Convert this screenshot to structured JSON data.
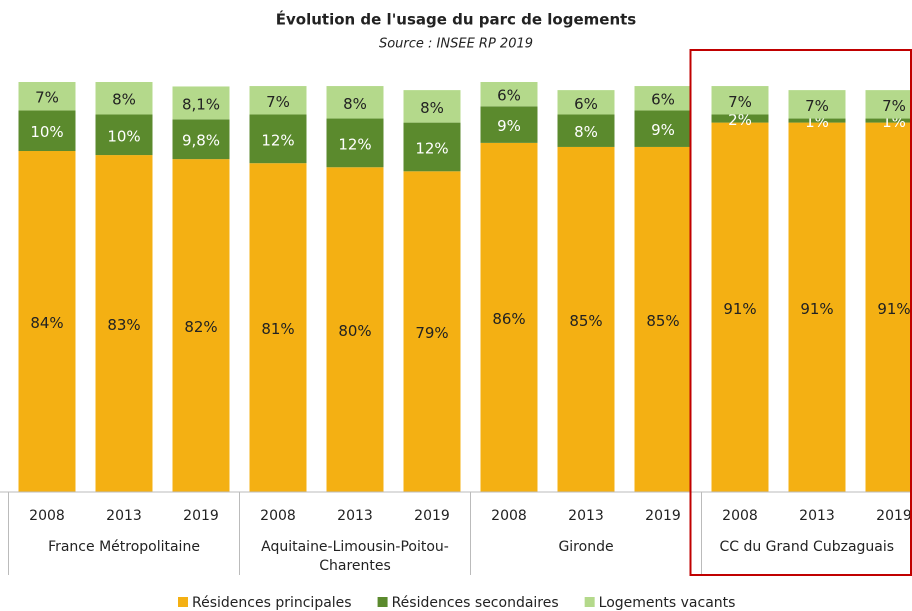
{
  "chart_data": {
    "type": "stacked_bar",
    "title": "Évolution de l'usage du parc de logements",
    "subtitle": "Source : INSEE RP 2019",
    "groups": [
      {
        "name": "France Métropolitaine",
        "categories": [
          "2008",
          "2013",
          "2019"
        ]
      },
      {
        "name": "Aquitaine-Limousin-Poitou-Charentes",
        "categories": [
          "2008",
          "2013",
          "2019"
        ]
      },
      {
        "name": "Gironde",
        "categories": [
          "2008",
          "2013",
          "2019"
        ]
      },
      {
        "name": "CC du Grand Cubzaguais",
        "categories": [
          "2008",
          "2013",
          "2019"
        ]
      }
    ],
    "series": [
      {
        "name": "Résidences principales",
        "color": "#f4b013",
        "values": [
          84,
          83,
          82,
          81,
          80,
          79,
          86,
          85,
          85,
          91,
          91,
          91
        ],
        "value_labels": [
          "84%",
          "83%",
          "82%",
          "81%",
          "80%",
          "79%",
          "86%",
          "85%",
          "85%",
          "91%",
          "91%",
          "91%"
        ]
      },
      {
        "name": "Résidences secondaires",
        "color": "#5b8a2d",
        "values": [
          10,
          10,
          9.8,
          12,
          12,
          12,
          9,
          8,
          9,
          2,
          1,
          1
        ],
        "value_labels": [
          "10%",
          "10%",
          "9,8%",
          "12%",
          "12%",
          "12%",
          "9%",
          "8%",
          "9%",
          "2%",
          "1%",
          "1%"
        ]
      },
      {
        "name": "Logements vacants",
        "color": "#b4d98b",
        "values": [
          7,
          8,
          8.1,
          7,
          8,
          8,
          6,
          6,
          6,
          7,
          7,
          7
        ],
        "value_labels": [
          "7%",
          "8%",
          "8,1%",
          "7%",
          "8%",
          "8%",
          "6%",
          "6%",
          "6%",
          "7%",
          "7%",
          "7%"
        ]
      }
    ]
  }
}
